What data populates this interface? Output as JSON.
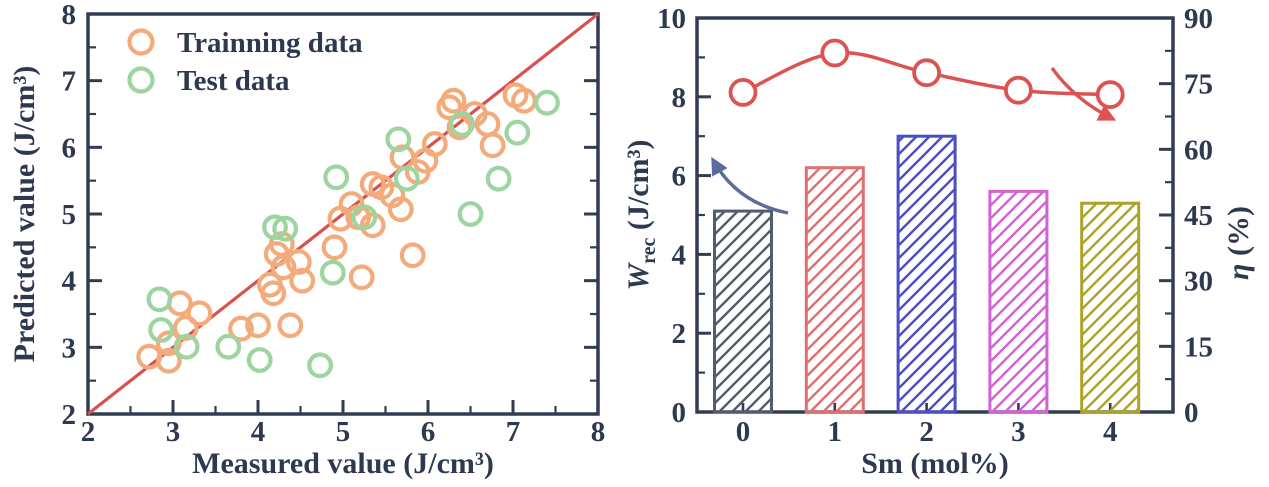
{
  "figure": {
    "background": "#ffffff",
    "text_color": "#2e3950",
    "spine_color": "#323c52"
  },
  "chart_data": [
    {
      "id": "scatter-panel",
      "type": "scatter",
      "xlabel": "Measured value (J/cm³)",
      "ylabel": "Predicted value (J/cm³)",
      "xlim": [
        2,
        8
      ],
      "ylim": [
        2,
        8
      ],
      "xticks": [
        2,
        3,
        4,
        5,
        6,
        7,
        8
      ],
      "yticks": [
        2,
        3,
        4,
        5,
        6,
        7,
        8
      ],
      "minor_step": 0.5,
      "grid": false,
      "identity_line": {
        "from": [
          2,
          2
        ],
        "to": [
          8,
          8
        ],
        "color": "#d9514f"
      },
      "legend": {
        "position": "top-left",
        "entries": [
          {
            "label": "Trainning data",
            "color": "#f3ab7b"
          },
          {
            "label": "Test data",
            "color": "#9cd5a0"
          }
        ]
      },
      "series": [
        {
          "name": "Trainning data",
          "marker": "open-circle",
          "color": "#f3ab7b",
          "points": [
            [
              2.72,
              2.86
            ],
            [
              2.95,
              2.8
            ],
            [
              2.95,
              3.06
            ],
            [
              3.08,
              3.66
            ],
            [
              3.15,
              3.29
            ],
            [
              3.31,
              3.51
            ],
            [
              3.8,
              3.28
            ],
            [
              4.0,
              3.33
            ],
            [
              4.38,
              3.33
            ],
            [
              4.14,
              3.94
            ],
            [
              4.18,
              3.81
            ],
            [
              4.22,
              4.4
            ],
            [
              4.3,
              4.2
            ],
            [
              4.28,
              4.55
            ],
            [
              4.48,
              4.28
            ],
            [
              4.52,
              4.0
            ],
            [
              4.9,
              4.5
            ],
            [
              4.97,
              4.93
            ],
            [
              5.1,
              5.15
            ],
            [
              5.18,
              4.95
            ],
            [
              5.22,
              4.05
            ],
            [
              5.35,
              5.45
            ],
            [
              5.45,
              5.4
            ],
            [
              5.35,
              4.83
            ],
            [
              5.58,
              5.28
            ],
            [
              5.68,
              5.07
            ],
            [
              5.7,
              5.85
            ],
            [
              5.82,
              4.38
            ],
            [
              5.88,
              5.63
            ],
            [
              5.97,
              5.8
            ],
            [
              6.08,
              6.05
            ],
            [
              6.25,
              6.6
            ],
            [
              6.3,
              6.7
            ],
            [
              6.37,
              6.3
            ],
            [
              6.55,
              6.5
            ],
            [
              6.7,
              6.35
            ],
            [
              6.76,
              6.03
            ],
            [
              7.03,
              6.78
            ],
            [
              7.13,
              6.7
            ]
          ]
        },
        {
          "name": "Test data",
          "marker": "open-circle",
          "color": "#9cd5a0",
          "points": [
            [
              2.84,
              3.72
            ],
            [
              2.86,
              3.26
            ],
            [
              3.16,
              3.01
            ],
            [
              3.65,
              3.01
            ],
            [
              4.02,
              2.81
            ],
            [
              4.73,
              2.73
            ],
            [
              4.2,
              4.8
            ],
            [
              4.32,
              4.78
            ],
            [
              4.88,
              4.12
            ],
            [
              4.92,
              5.55
            ],
            [
              5.25,
              4.95
            ],
            [
              5.65,
              6.12
            ],
            [
              5.75,
              5.53
            ],
            [
              6.4,
              6.35
            ],
            [
              6.5,
              5.0
            ],
            [
              6.83,
              5.53
            ],
            [
              7.05,
              6.22
            ],
            [
              7.4,
              6.67
            ]
          ]
        }
      ]
    },
    {
      "id": "bar-line-panel",
      "type": "bar",
      "xlabel": "Sm (mol%)",
      "ylabel_left": {
        "symbol": "W",
        "subscript": "rec",
        "units": " (J/cm³)"
      },
      "ylabel_right": {
        "symbol": "η",
        "units": " (%)"
      },
      "categories": [
        "0",
        "1",
        "2",
        "3",
        "4"
      ],
      "bars": {
        "axis": "left",
        "values": [
          5.1,
          6.2,
          7.0,
          5.6,
          5.3
        ],
        "colors": [
          "#535c6e",
          "#e06f6f",
          "#4b4ec4",
          "#d163d6",
          "#aca32b"
        ],
        "hatch": "/"
      },
      "line": {
        "name": "η (%)",
        "axis": "right",
        "values": [
          73,
          82,
          77.5,
          73.5,
          72.5
        ],
        "color": "#dd5351",
        "marker": "open-circle",
        "marker_fill": "#ffffff"
      },
      "ylim_left": [
        0,
        10
      ],
      "yticks_left": [
        0,
        2,
        4,
        6,
        8,
        10
      ],
      "minor_step_left": 1,
      "ylim_right": [
        0,
        90
      ],
      "yticks_right": [
        0,
        15,
        30,
        45,
        60,
        75,
        90
      ],
      "minor_step_right": 7.5,
      "annotations": [
        {
          "id": "left-axis-arrow",
          "type": "curved-arrow",
          "meaning": "bars-read-on-left-axis",
          "color": "#5a6c9e"
        },
        {
          "id": "right-axis-arrow",
          "type": "curved-arrow",
          "meaning": "line-reads-on-right-axis",
          "color": "#dd5351"
        }
      ]
    }
  ]
}
